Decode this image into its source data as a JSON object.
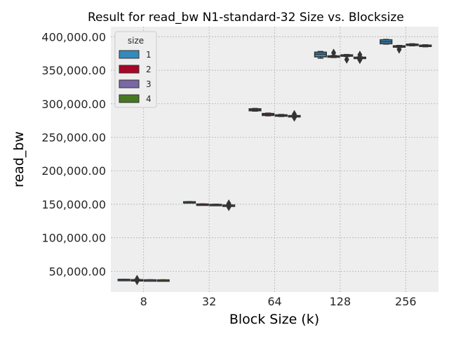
{
  "chart_data": {
    "type": "box",
    "title": "Result for read_bw N1-standard-32 Size vs. Blocksize",
    "xlabel": "Block Size (k)",
    "ylabel": "read_bw",
    "categories": [
      "8",
      "32",
      "64",
      "128",
      "256"
    ],
    "ylim": [
      19000,
      415000
    ],
    "yticks": [
      50000,
      100000,
      150000,
      200000,
      250000,
      300000,
      350000,
      400000
    ],
    "ytick_labels": [
      "50,000.00",
      "100,000.00",
      "150,000.00",
      "200,000.00",
      "250,000.00",
      "300,000.00",
      "350,000.00",
      "400,000.00"
    ],
    "grid": true,
    "legend_position": "top-left",
    "legend": {
      "title": "size",
      "entries": [
        "1",
        "2",
        "3",
        "4"
      ]
    },
    "colors": {
      "1": "#348abd",
      "2": "#a60628",
      "3": "#7a68a6",
      "4": "#467821",
      "background": "#eeeeee",
      "grid": "#b2b2b2",
      "box_line": "#333333"
    },
    "series": [
      {
        "name": "1",
        "boxes": [
          {
            "q1": 37600,
            "median": 37800,
            "q3": 38000,
            "whislo": 37500,
            "whishi": 38100,
            "fliers": []
          },
          {
            "q1": 153200,
            "median": 153500,
            "q3": 153800,
            "whislo": 153000,
            "whishi": 154000,
            "fliers": []
          },
          {
            "q1": 289500,
            "median": 291000,
            "q3": 292500,
            "whislo": 289000,
            "whishi": 293000,
            "fliers": []
          },
          {
            "q1": 370000,
            "median": 374000,
            "q3": 377000,
            "whislo": 368000,
            "whishi": 378000,
            "fliers": []
          },
          {
            "q1": 389500,
            "median": 392500,
            "q3": 395500,
            "whislo": 389000,
            "whishi": 396000,
            "fliers": []
          }
        ]
      },
      {
        "name": "2",
        "boxes": [
          {
            "q1": 36800,
            "median": 37200,
            "q3": 37600,
            "whislo": 36600,
            "whishi": 37800,
            "fliers": [
              35500,
              38500
            ]
          },
          {
            "q1": 149600,
            "median": 150000,
            "q3": 150400,
            "whislo": 149400,
            "whishi": 150600,
            "fliers": []
          },
          {
            "q1": 282500,
            "median": 284000,
            "q3": 285500,
            "whislo": 282000,
            "whishi": 286000,
            "fliers": []
          },
          {
            "q1": 369500,
            "median": 370500,
            "q3": 371500,
            "whislo": 369000,
            "whishi": 372000,
            "fliers": [
              376000
            ]
          },
          {
            "q1": 384500,
            "median": 385500,
            "q3": 386500,
            "whislo": 384000,
            "whishi": 387000,
            "fliers": [
              381000
            ]
          }
        ]
      },
      {
        "name": "3",
        "boxes": [
          {
            "q1": 36900,
            "median": 37100,
            "q3": 37300,
            "whislo": 36800,
            "whishi": 37400,
            "fliers": []
          },
          {
            "q1": 149300,
            "median": 149600,
            "q3": 149900,
            "whislo": 149100,
            "whishi": 150100,
            "fliers": []
          },
          {
            "q1": 281500,
            "median": 282500,
            "q3": 283500,
            "whislo": 281000,
            "whishi": 284000,
            "fliers": []
          },
          {
            "q1": 371000,
            "median": 372000,
            "q3": 373000,
            "whislo": 370500,
            "whishi": 373500,
            "fliers": [
              366000
            ]
          },
          {
            "q1": 387000,
            "median": 388000,
            "q3": 389000,
            "whislo": 386500,
            "whishi": 389500,
            "fliers": []
          }
        ]
      },
      {
        "name": "4",
        "boxes": [
          {
            "q1": 36800,
            "median": 37000,
            "q3": 37200,
            "whislo": 36700,
            "whishi": 37300,
            "fliers": []
          },
          {
            "q1": 148300,
            "median": 148600,
            "q3": 148900,
            "whislo": 148100,
            "whishi": 149100,
            "fliers": [
              146000,
              151000
            ]
          },
          {
            "q1": 281000,
            "median": 281700,
            "q3": 282400,
            "whislo": 280800,
            "whishi": 282600,
            "fliers": [
              279500,
              284500
            ]
          },
          {
            "q1": 367500,
            "median": 368500,
            "q3": 369500,
            "whislo": 367000,
            "whishi": 370000,
            "fliers": [
              365500,
              373000
            ]
          },
          {
            "q1": 385500,
            "median": 386500,
            "q3": 387500,
            "whislo": 385000,
            "whishi": 388000,
            "fliers": []
          }
        ]
      }
    ]
  }
}
